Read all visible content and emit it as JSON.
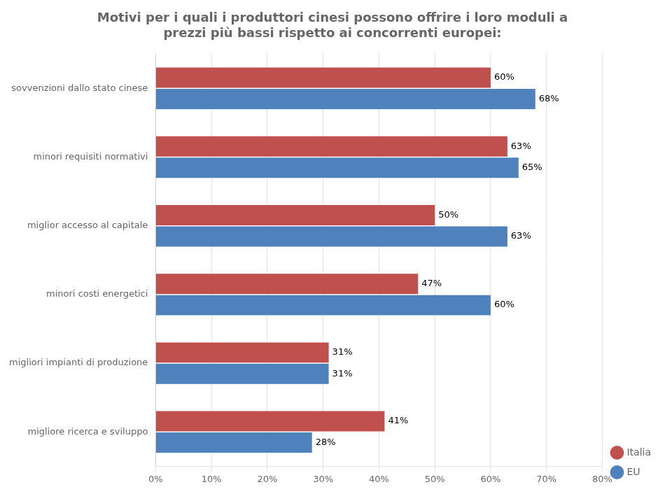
{
  "chart_data": {
    "type": "bar",
    "orientation": "horizontal",
    "title": "Motivi per i quali i produttori cinesi possono offrire i loro moduli a\nprezzi più bassi rispetto ai concorrenti europei:",
    "categories": [
      "sovvenzioni dallo stato cinese",
      "minori requisiti normativi",
      "miglior accesso al capitale",
      "minori costi energetici",
      "migliori impianti di produzione",
      "migliore ricerca e sviluppo"
    ],
    "series": [
      {
        "name": "Italia",
        "color": "#c0504d",
        "values": [
          60,
          63,
          50,
          47,
          31,
          41
        ],
        "value_labels": [
          "60%",
          "63%",
          "50%",
          "47%",
          "31%",
          "41%"
        ]
      },
      {
        "name": "EU",
        "color": "#4f81bd",
        "values": [
          68,
          65,
          63,
          60,
          31,
          28
        ],
        "value_labels": [
          "68%",
          "65%",
          "63%",
          "60%",
          "31%",
          "28%"
        ]
      }
    ],
    "xlim": [
      0,
      80
    ],
    "xticks": [
      {
        "value": 0,
        "label": "0%"
      },
      {
        "value": 10,
        "label": "10%"
      },
      {
        "value": 20,
        "label": "20%"
      },
      {
        "value": 30,
        "label": "30%"
      },
      {
        "value": 40,
        "label": "40%"
      },
      {
        "value": 50,
        "label": "50%"
      },
      {
        "value": 60,
        "label": "60%"
      },
      {
        "value": 70,
        "label": "70%"
      },
      {
        "value": 80,
        "label": "80%"
      }
    ],
    "grid": true,
    "legend": "lower right",
    "data_labels": true
  }
}
